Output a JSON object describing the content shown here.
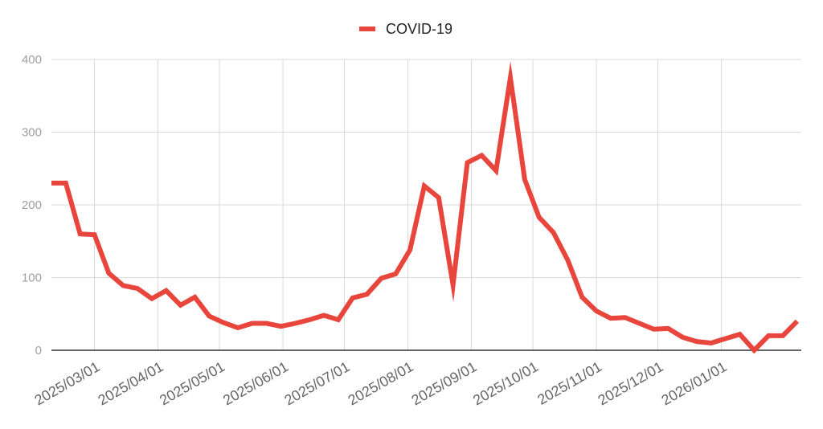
{
  "chart_data": {
    "type": "line",
    "title": "",
    "xlabel": "",
    "ylabel": "",
    "legend_position": "top-center",
    "grid": true,
    "ylim": [
      0,
      400
    ],
    "yticks": [
      0,
      100,
      200,
      300,
      400
    ],
    "xlim": [
      "2025-02-08",
      "2026-02-09"
    ],
    "xticks": [
      {
        "date": "2025-03-01",
        "label": "2025/03/01"
      },
      {
        "date": "2025-04-01",
        "label": "2025/04/01"
      },
      {
        "date": "2025-05-01",
        "label": "2025/05/01"
      },
      {
        "date": "2025-06-01",
        "label": "2025/06/01"
      },
      {
        "date": "2025-07-01",
        "label": "2025/07/01"
      },
      {
        "date": "2025-08-01",
        "label": "2025/08/01"
      },
      {
        "date": "2025-09-01",
        "label": "2025/09/01"
      },
      {
        "date": "2025-10-01",
        "label": "2025/10/01"
      },
      {
        "date": "2025-11-01",
        "label": "2025/11/01"
      },
      {
        "date": "2025-12-01",
        "label": "2025/12/01"
      },
      {
        "date": "2026-01-01",
        "label": "2026/01/01"
      }
    ],
    "series": [
      {
        "name": "COVID-19",
        "color": "#e8453c",
        "x": [
          "2025-02-08",
          "2025-02-15",
          "2025-02-22",
          "2025-03-01",
          "2025-03-08",
          "2025-03-15",
          "2025-03-22",
          "2025-03-29",
          "2025-04-05",
          "2025-04-12",
          "2025-04-19",
          "2025-04-26",
          "2025-05-03",
          "2025-05-10",
          "2025-05-17",
          "2025-05-24",
          "2025-05-31",
          "2025-06-07",
          "2025-06-14",
          "2025-06-21",
          "2025-06-28",
          "2025-07-05",
          "2025-07-12",
          "2025-07-19",
          "2025-07-26",
          "2025-08-02",
          "2025-08-09",
          "2025-08-16",
          "2025-08-23",
          "2025-08-30",
          "2025-09-06",
          "2025-09-13",
          "2025-09-20",
          "2025-09-27",
          "2025-10-04",
          "2025-10-11",
          "2025-10-18",
          "2025-10-25",
          "2025-11-01",
          "2025-11-08",
          "2025-11-15",
          "2025-11-22",
          "2025-11-29",
          "2025-12-06",
          "2025-12-13",
          "2025-12-20",
          "2025-12-27",
          "2026-01-03",
          "2026-01-10",
          "2026-01-17",
          "2026-01-24",
          "2026-01-31",
          "2026-02-07"
        ],
        "values": [
          230,
          230,
          160,
          159,
          106,
          89,
          85,
          71,
          82,
          62,
          73,
          47,
          38,
          31,
          37,
          37,
          33,
          37,
          42,
          48,
          42,
          72,
          77,
          99,
          105,
          138,
          226,
          210,
          90,
          258,
          268,
          247,
          375,
          235,
          183,
          162,
          124,
          73,
          54,
          44,
          45,
          37,
          29,
          30,
          18,
          12,
          10,
          16,
          22,
          0,
          20,
          20,
          40
        ]
      }
    ]
  }
}
